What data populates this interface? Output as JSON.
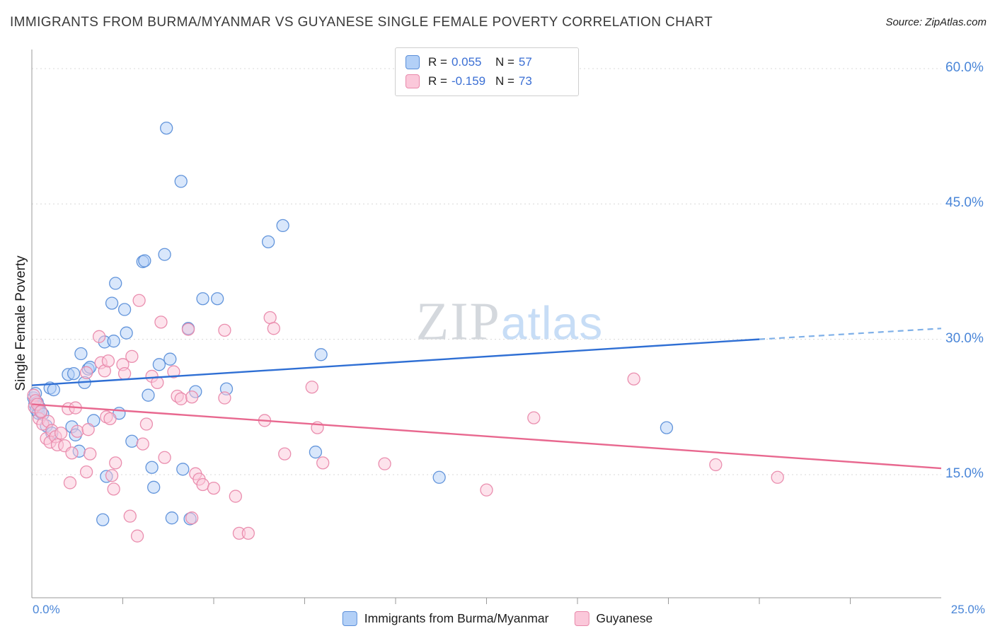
{
  "page": {
    "title": "IMMIGRANTS FROM BURMA/MYANMAR VS GUYANESE SINGLE FEMALE POVERTY CORRELATION CHART",
    "source": "Source: ZipAtlas.com"
  },
  "watermark": {
    "part1": "ZIP",
    "part2": "atlas"
  },
  "chart_data": {
    "type": "scatter",
    "title": "IMMIGRANTS FROM BURMA/MYANMAR VS GUYANESE SINGLE FEMALE POVERTY CORRELATION CHART",
    "ylabel": "Single Female Poverty",
    "x_axis": {
      "min": 0,
      "max": 25,
      "left_label": "0.0%",
      "right_label": "25.0%"
    },
    "y_axis": {
      "min": 0,
      "max": 62,
      "ticks": [
        {
          "value": 60,
          "label": "60.0%"
        },
        {
          "value": 45,
          "label": "45.0%"
        },
        {
          "value": 30,
          "label": "30.0%"
        },
        {
          "value": 15,
          "label": "15.0%"
        }
      ]
    },
    "grid": true,
    "legend_position": "top-center",
    "legend_rows": [
      {
        "r_label": "R =",
        "r_value": "0.055",
        "n_label": "N =",
        "n_value": "57"
      },
      {
        "r_label": "R =",
        "r_value": "-0.159",
        "n_label": "N =",
        "n_value": "73"
      }
    ],
    "series": [
      {
        "name": "Immigrants from Burma/Myanmar",
        "R": 0.055,
        "N": 57,
        "fill": "#b3d0f7",
        "stroke": "#5b8fd9",
        "trend_color": "#2f6fd4",
        "trend_dash_color": "#7fb0e8",
        "trend_solid": [
          [
            0,
            24.9
          ],
          [
            20,
            30.0
          ]
        ],
        "trend_dashed": [
          [
            20,
            30.0
          ],
          [
            25,
            31.2
          ]
        ],
        "points": [
          [
            0.05,
            23.5
          ],
          [
            0.08,
            22.8
          ],
          [
            0.1,
            24.0
          ],
          [
            0.12,
            22.2
          ],
          [
            0.15,
            23.0
          ],
          [
            0.18,
            21.8
          ],
          [
            0.2,
            22.5
          ],
          [
            0.25,
            21.9
          ],
          [
            0.3,
            21.7
          ],
          [
            0.4,
            20.4
          ],
          [
            0.5,
            24.6
          ],
          [
            0.55,
            19.6
          ],
          [
            0.6,
            24.4
          ],
          [
            1.0,
            26.1
          ],
          [
            1.1,
            20.3
          ],
          [
            1.15,
            26.2
          ],
          [
            1.2,
            19.4
          ],
          [
            1.3,
            17.6
          ],
          [
            1.35,
            28.4
          ],
          [
            1.45,
            25.2
          ],
          [
            1.55,
            26.7
          ],
          [
            1.6,
            26.9
          ],
          [
            1.7,
            21.0
          ],
          [
            1.95,
            10.0
          ],
          [
            2.0,
            29.7
          ],
          [
            2.05,
            14.8
          ],
          [
            2.2,
            34.0
          ],
          [
            2.25,
            29.8
          ],
          [
            2.3,
            36.2
          ],
          [
            2.4,
            21.8
          ],
          [
            2.55,
            33.3
          ],
          [
            2.6,
            30.7
          ],
          [
            2.75,
            18.7
          ],
          [
            3.05,
            38.6
          ],
          [
            3.1,
            38.7
          ],
          [
            3.2,
            23.8
          ],
          [
            3.3,
            15.8
          ],
          [
            3.35,
            13.6
          ],
          [
            3.5,
            27.2
          ],
          [
            3.65,
            39.4
          ],
          [
            3.7,
            53.4
          ],
          [
            3.8,
            27.8
          ],
          [
            3.85,
            10.2
          ],
          [
            4.1,
            47.5
          ],
          [
            4.15,
            15.6
          ],
          [
            4.3,
            31.2
          ],
          [
            4.35,
            10.1
          ],
          [
            4.5,
            24.2
          ],
          [
            4.7,
            34.5
          ],
          [
            5.1,
            34.5
          ],
          [
            5.35,
            24.5
          ],
          [
            6.5,
            40.8
          ],
          [
            6.9,
            42.6
          ],
          [
            7.8,
            17.5
          ],
          [
            7.95,
            28.3
          ],
          [
            11.2,
            14.7
          ],
          [
            17.45,
            20.2
          ]
        ]
      },
      {
        "name": "Guyanese",
        "R": -0.159,
        "N": 73,
        "fill": "#fbc8da",
        "stroke": "#e989ab",
        "trend_color": "#e8688f",
        "trend_solid": [
          [
            0,
            22.8
          ],
          [
            25,
            15.7
          ]
        ],
        "trend_dashed": null,
        "points": [
          [
            0.05,
            23.8
          ],
          [
            0.07,
            22.5
          ],
          [
            0.1,
            23.2
          ],
          [
            0.15,
            22.8
          ],
          [
            0.2,
            21.2
          ],
          [
            0.25,
            22.0
          ],
          [
            0.3,
            20.6
          ],
          [
            0.4,
            19.0
          ],
          [
            0.45,
            20.9
          ],
          [
            0.5,
            18.6
          ],
          [
            0.55,
            19.9
          ],
          [
            0.65,
            19.2
          ],
          [
            0.7,
            18.3
          ],
          [
            0.8,
            19.6
          ],
          [
            0.9,
            18.2
          ],
          [
            1.0,
            22.3
          ],
          [
            1.05,
            14.1
          ],
          [
            1.1,
            17.4
          ],
          [
            1.2,
            22.4
          ],
          [
            1.25,
            19.8
          ],
          [
            1.5,
            26.3
          ],
          [
            1.5,
            15.3
          ],
          [
            1.55,
            20.0
          ],
          [
            1.6,
            17.3
          ],
          [
            1.85,
            30.3
          ],
          [
            1.9,
            27.4
          ],
          [
            2.0,
            26.5
          ],
          [
            2.05,
            21.4
          ],
          [
            2.1,
            27.6
          ],
          [
            2.15,
            21.2
          ],
          [
            2.2,
            14.9
          ],
          [
            2.25,
            13.4
          ],
          [
            2.3,
            16.3
          ],
          [
            2.5,
            27.2
          ],
          [
            2.55,
            26.2
          ],
          [
            2.7,
            10.4
          ],
          [
            2.75,
            28.1
          ],
          [
            2.9,
            8.2
          ],
          [
            2.95,
            34.3
          ],
          [
            3.05,
            18.4
          ],
          [
            3.15,
            20.6
          ],
          [
            3.3,
            25.9
          ],
          [
            3.45,
            25.2
          ],
          [
            3.55,
            31.9
          ],
          [
            3.65,
            16.9
          ],
          [
            3.9,
            26.4
          ],
          [
            4.0,
            23.7
          ],
          [
            4.1,
            23.4
          ],
          [
            4.3,
            31.1
          ],
          [
            4.4,
            23.6
          ],
          [
            4.4,
            10.2
          ],
          [
            4.5,
            15.1
          ],
          [
            4.6,
            14.5
          ],
          [
            4.7,
            13.9
          ],
          [
            5.0,
            13.5
          ],
          [
            5.3,
            31.0
          ],
          [
            5.3,
            23.5
          ],
          [
            5.6,
            12.6
          ],
          [
            5.7,
            8.5
          ],
          [
            5.95,
            8.5
          ],
          [
            6.4,
            21.0
          ],
          [
            6.55,
            32.4
          ],
          [
            6.65,
            31.2
          ],
          [
            6.95,
            17.3
          ],
          [
            7.7,
            24.7
          ],
          [
            7.85,
            20.2
          ],
          [
            8.0,
            16.3
          ],
          [
            9.7,
            16.2
          ],
          [
            12.5,
            13.3
          ],
          [
            13.8,
            21.3
          ],
          [
            16.55,
            25.6
          ],
          [
            18.8,
            16.1
          ],
          [
            20.5,
            14.7
          ]
        ]
      }
    ],
    "colors": {
      "axis_label": "#4a86d8",
      "grid": "#d8d8d8",
      "axis": "#9a9a9a"
    }
  }
}
